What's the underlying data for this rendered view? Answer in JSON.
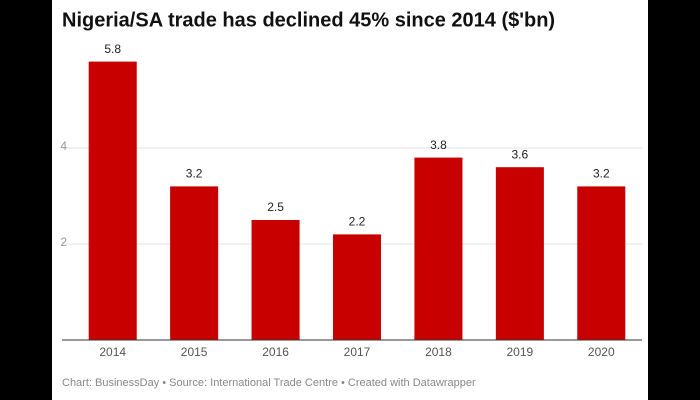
{
  "chart_data": {
    "type": "bar",
    "title": "Nigeria/SA trade has declined 45% since 2014 ($'bn)",
    "categories": [
      "2014",
      "2015",
      "2016",
      "2017",
      "2018",
      "2019",
      "2020"
    ],
    "values": [
      5.8,
      3.2,
      2.5,
      2.2,
      3.8,
      3.6,
      3.2
    ],
    "color": "#c80000",
    "ylim": [
      0,
      6
    ],
    "yticks": [
      2,
      4
    ],
    "grid": true,
    "source": "Chart: BusinessDay • Source: International Trade Centre • Created with Datawrapper"
  }
}
